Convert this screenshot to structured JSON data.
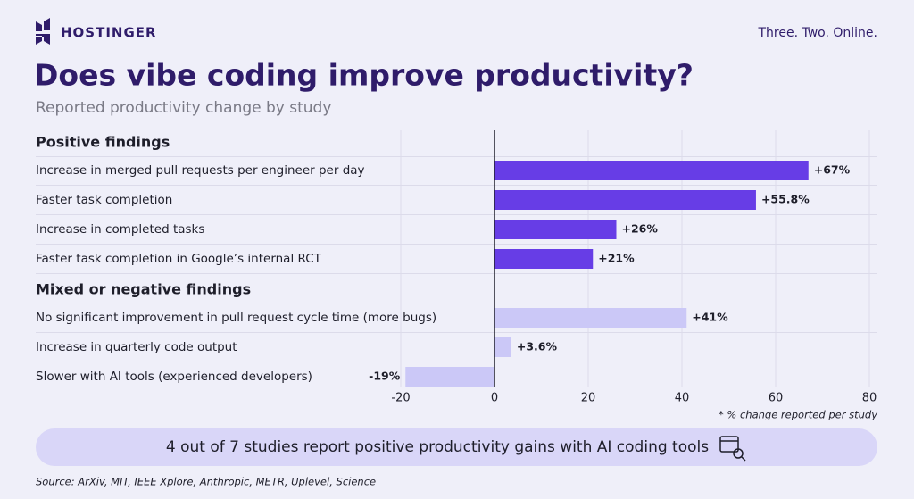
{
  "header": {
    "brand": "HOSTINGER",
    "tagline": "Three. Two. Online."
  },
  "chart_data": {
    "type": "bar",
    "orientation": "horizontal",
    "title": "Does vibe coding improve productivity?",
    "subtitle": "Reported productivity change by study",
    "groups": [
      {
        "name": "Positive findings",
        "color": "#673de6",
        "categories": [
          "Increase in merged pull requests per engineer per day",
          "Faster task completion",
          "Increase in completed tasks",
          "Faster task completion in Google’s internal RCT"
        ],
        "values": [
          67,
          55.8,
          26,
          21
        ],
        "value_labels": [
          "+67%",
          "+55.8%",
          "+26%",
          "+21%"
        ]
      },
      {
        "name": "Mixed or negative findings",
        "color": "#cbc8f7",
        "categories": [
          "No significant improvement in pull request cycle time (more bugs)",
          "Increase in quarterly code output",
          "Slower with AI tools (experienced developers)"
        ],
        "values": [
          41,
          3.6,
          -19
        ],
        "value_labels": [
          "+41%",
          "+3.6%",
          "-19%"
        ]
      }
    ],
    "xlim": [
      -20,
      80
    ],
    "xticks": [
      -20,
      0,
      20,
      40,
      60,
      80
    ],
    "grid": true,
    "note": "* % change reported per study",
    "banner": "4 out of 7 studies report positive productivity gains with AI coding tools",
    "source": "Source: ArXiv, MIT, IEEE Xplore, Anthropic, METR, Uplevel, Science"
  }
}
